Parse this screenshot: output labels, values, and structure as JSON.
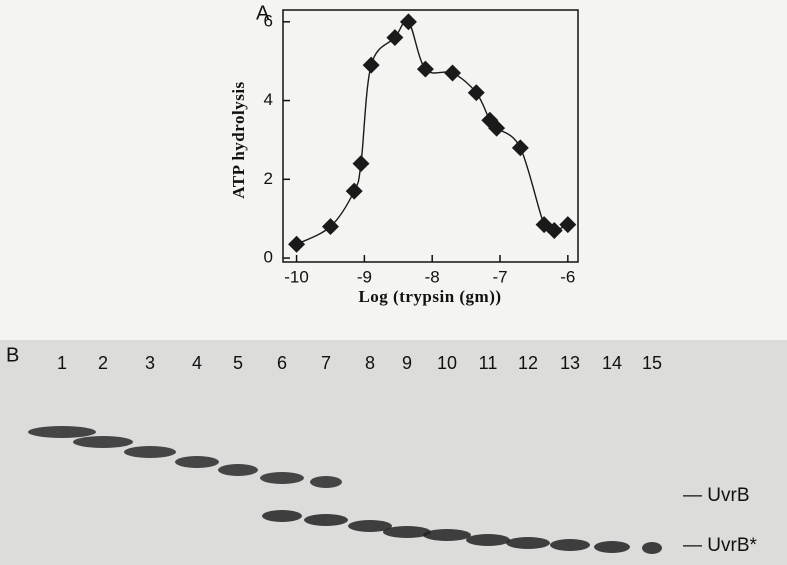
{
  "chart_data": {
    "type": "line",
    "panel_label": "A",
    "xlabel": "Log (trypsin (gm))",
    "ylabel": "ATP hydrolysis",
    "x": [
      -10,
      -9.5,
      -9.15,
      -9.05,
      -8.9,
      -8.55,
      -8.35,
      -8.1,
      -7.7,
      -7.35,
      -7.15,
      -7.05,
      -6.7,
      -6.35,
      -6.2,
      -6.0
    ],
    "values": [
      0.35,
      0.8,
      1.7,
      2.4,
      4.9,
      5.6,
      6.0,
      4.8,
      4.7,
      4.2,
      3.5,
      3.3,
      2.8,
      0.85,
      0.7,
      0.85
    ],
    "color": "#1a1a1a",
    "xlim": [
      -10.2,
      -5.85
    ],
    "xticks": [
      -10,
      -9,
      -8,
      -7,
      -6
    ],
    "ylim": [
      -0.1,
      6.3
    ],
    "yticks": [
      0,
      2,
      4,
      6
    ]
  },
  "panel_b": {
    "label": "B",
    "lanes": [
      "1",
      "2",
      "3",
      "4",
      "5",
      "6",
      "7",
      "8",
      "9",
      "10",
      "11",
      "12",
      "13",
      "14",
      "15"
    ],
    "bands": [
      "— UvrB",
      "— UvrB*"
    ]
  }
}
